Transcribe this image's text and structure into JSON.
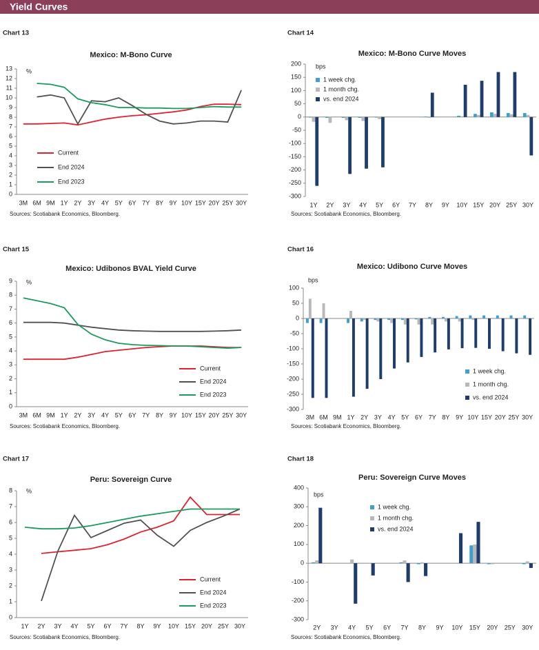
{
  "header": {
    "title": "Yield Curves"
  },
  "chart_data": [
    {
      "type": "line",
      "label": "Chart 13",
      "title": "Mexico: M-Bono Curve",
      "ylabel": "%",
      "source": "Sources: Scotiabank Economics, Bloomberg.",
      "categories": [
        "3M",
        "6M",
        "9M",
        "1Y",
        "2Y",
        "3Y",
        "4Y",
        "5Y",
        "6Y",
        "7Y",
        "8Y",
        "9Y",
        "10Y",
        "15Y",
        "20Y",
        "25Y",
        "30Y"
      ],
      "ylim": [
        0,
        13
      ],
      "yticks": [
        0,
        1,
        2,
        3,
        4,
        5,
        6,
        7,
        8,
        9,
        10,
        11,
        12,
        13
      ],
      "legend": "lower left",
      "series": [
        {
          "name": "Current",
          "color": "#e0202e",
          "values": [
            7.3,
            7.3,
            7.35,
            7.4,
            7.2,
            7.5,
            7.8,
            8.0,
            8.15,
            8.25,
            8.4,
            8.55,
            8.75,
            9.1,
            9.35,
            9.35,
            9.3
          ]
        },
        {
          "name": "End 2024",
          "color": "#505050",
          "values": [
            null,
            10.1,
            10.3,
            10.0,
            7.3,
            9.7,
            9.6,
            10.0,
            9.2,
            8.3,
            7.6,
            7.3,
            7.4,
            7.6,
            7.6,
            7.5,
            10.8
          ]
        },
        {
          "name": "End 2023",
          "color": "#1a9a5b",
          "values": [
            null,
            11.5,
            11.4,
            11.1,
            9.9,
            9.5,
            9.3,
            9.0,
            9.0,
            8.95,
            8.95,
            8.9,
            8.9,
            9.0,
            9.1,
            9.05,
            9.05
          ]
        }
      ]
    },
    {
      "type": "bar",
      "label": "Chart 14",
      "title": "Mexico: M-Bono Curve Moves",
      "ylabel": "bps",
      "source": "Sources: Scotiabank Economics, Bloomberg.",
      "categories": [
        "1Y",
        "2Y",
        "3Y",
        "4Y",
        "5Y",
        "6Y",
        "7Y",
        "8Y",
        "9Y",
        "10Y",
        "15Y",
        "20Y",
        "25Y",
        "30Y"
      ],
      "ylim": [
        -300,
        200
      ],
      "yticks": [
        -300,
        -250,
        -200,
        -150,
        -100,
        -50,
        0,
        50,
        100,
        150,
        200
      ],
      "legend": "upper left",
      "series": [
        {
          "name": "1 week chg.",
          "color": "#3fa0d0",
          "values": [
            -2,
            -3,
            -3,
            -3,
            -2,
            0,
            0,
            2,
            0,
            5,
            12,
            18,
            15,
            15
          ]
        },
        {
          "name": "1 month chg.",
          "color": "#b8b8b8",
          "values": [
            -18,
            -22,
            -12,
            -15,
            -8,
            0,
            0,
            -3,
            0,
            3,
            8,
            12,
            10,
            8
          ]
        },
        {
          "name": "vs. end 2024",
          "color": "#1f3c6e",
          "values": [
            -260,
            0,
            -215,
            -195,
            -190,
            0,
            0,
            92,
            0,
            122,
            137,
            170,
            170,
            -145
          ]
        }
      ]
    },
    {
      "type": "line",
      "label": "Chart 15",
      "title": "Mexico: Udibonos BVAL Yield Curve",
      "ylabel": "%",
      "source": "Sources: Scotiabank Economics, Bloomberg.",
      "categories": [
        "3M",
        "6M",
        "9M",
        "1Y",
        "2Y",
        "3Y",
        "4Y",
        "5Y",
        "6Y",
        "7Y",
        "8Y",
        "9Y",
        "10Y",
        "15Y",
        "20Y",
        "25Y",
        "30Y"
      ],
      "ylim": [
        0,
        9
      ],
      "yticks": [
        0,
        1,
        2,
        3,
        4,
        5,
        6,
        7,
        8,
        9
      ],
      "legend": "lower right",
      "series": [
        {
          "name": "Current",
          "color": "#e0202e",
          "values": [
            3.4,
            3.4,
            3.4,
            3.4,
            3.55,
            3.75,
            3.95,
            4.05,
            4.15,
            4.25,
            4.3,
            4.35,
            4.35,
            4.35,
            4.3,
            4.25,
            4.25
          ]
        },
        {
          "name": "End 2024",
          "color": "#505050",
          "values": [
            6.05,
            6.05,
            6.05,
            6.0,
            5.85,
            5.7,
            5.6,
            5.5,
            5.45,
            5.42,
            5.4,
            5.4,
            5.4,
            5.4,
            5.42,
            5.45,
            5.5
          ]
        },
        {
          "name": "End 2023",
          "color": "#1a9a5b",
          "values": [
            7.8,
            7.6,
            7.4,
            7.1,
            5.9,
            5.2,
            4.8,
            4.55,
            4.45,
            4.4,
            4.38,
            4.35,
            4.35,
            4.3,
            4.25,
            4.2,
            4.25
          ]
        }
      ]
    },
    {
      "type": "bar",
      "label": "Chart 16",
      "title": "Mexico: Udibono Curve Moves",
      "ylabel": "bps",
      "source": "Sources: Scotiabank Economics, Bloomberg.",
      "categories": [
        "3M",
        "6M",
        "9M",
        "1Y",
        "2Y",
        "3Y",
        "4Y",
        "5Y",
        "6Y",
        "7Y",
        "8Y",
        "9Y",
        "10Y",
        "15Y",
        "20Y",
        "25Y",
        "30Y"
      ],
      "ylim": [
        -300,
        100
      ],
      "yticks": [
        -300,
        -250,
        -200,
        -150,
        -100,
        -50,
        0,
        50,
        100
      ],
      "legend": "lower right",
      "series": [
        {
          "name": "1 week chg.",
          "color": "#3fa0d0",
          "values": [
            -15,
            -15,
            0,
            -15,
            -10,
            -5,
            -5,
            -5,
            -3,
            5,
            5,
            8,
            10,
            10,
            10,
            10,
            10
          ]
        },
        {
          "name": "1 month chg.",
          "color": "#b8b8b8",
          "values": [
            65,
            50,
            0,
            25,
            -5,
            -10,
            -15,
            -20,
            -20,
            -20,
            -10,
            -10,
            -5,
            0,
            0,
            0,
            0
          ]
        },
        {
          "name": "vs. end 2024",
          "color": "#1f3c6e",
          "values": [
            -262,
            -262,
            0,
            -258,
            -232,
            -200,
            -165,
            -145,
            -127,
            -112,
            -102,
            -98,
            -97,
            -100,
            -108,
            -115,
            -120
          ]
        }
      ]
    },
    {
      "type": "line",
      "label": "Chart 17",
      "title": "Peru: Sovereign Curve",
      "ylabel": "%",
      "source": "Sources: Scotiabank Economics, Bloomberg.",
      "categories": [
        "1Y",
        "2Y",
        "3Y",
        "4Y",
        "5Y",
        "6Y",
        "7Y",
        "8Y",
        "9Y",
        "10Y",
        "15Y",
        "20Y",
        "25Y",
        "30Y"
      ],
      "ylim": [
        0,
        8
      ],
      "yticks": [
        0,
        1,
        2,
        3,
        4,
        5,
        6,
        7,
        8
      ],
      "legend": "lower right",
      "series": [
        {
          "name": "Current",
          "color": "#e0202e",
          "values": [
            null,
            4.05,
            4.15,
            4.25,
            4.35,
            4.6,
            4.95,
            5.4,
            5.7,
            6.1,
            7.6,
            6.5,
            6.5,
            6.5
          ]
        },
        {
          "name": "End 2024",
          "color": "#505050",
          "values": [
            null,
            1.05,
            4.2,
            6.45,
            5.05,
            5.5,
            5.95,
            6.15,
            5.2,
            4.5,
            5.5,
            6.0,
            6.4,
            6.85
          ]
        },
        {
          "name": "End 2023",
          "color": "#1a9a5b",
          "values": [
            5.7,
            5.6,
            5.6,
            5.65,
            5.8,
            6.0,
            6.2,
            6.4,
            6.55,
            6.7,
            6.85,
            6.85,
            6.85,
            6.85
          ]
        }
      ]
    },
    {
      "type": "bar",
      "label": "Chart 18",
      "title": "Peru: Sovereign Curve Moves",
      "ylabel": "bps",
      "source": "Sources: Scotiabank Economics, Bloomberg.",
      "categories": [
        "2Y",
        "3Y",
        "4Y",
        "5Y",
        "6Y",
        "7Y",
        "8Y",
        "9Y",
        "10Y",
        "15Y",
        "20Y",
        "25Y",
        "30Y"
      ],
      "ylim": [
        -300,
        400
      ],
      "yticks": [
        -300,
        -200,
        -100,
        0,
        100,
        200,
        300,
        400
      ],
      "legend": "upper center",
      "series": [
        {
          "name": "1 week chg.",
          "color": "#3fa0d0",
          "values": [
            5,
            0,
            0,
            0,
            0,
            5,
            -5,
            0,
            0,
            95,
            -5,
            0,
            -5
          ]
        },
        {
          "name": "1 month chg.",
          "color": "#b8b8b8",
          "values": [
            15,
            0,
            20,
            0,
            0,
            15,
            5,
            0,
            0,
            100,
            -5,
            0,
            10
          ]
        },
        {
          "name": "vs. end 2024",
          "color": "#1f3c6e",
          "values": [
            295,
            0,
            -215,
            -65,
            0,
            -100,
            -68,
            0,
            160,
            220,
            0,
            0,
            -25
          ]
        }
      ]
    }
  ]
}
